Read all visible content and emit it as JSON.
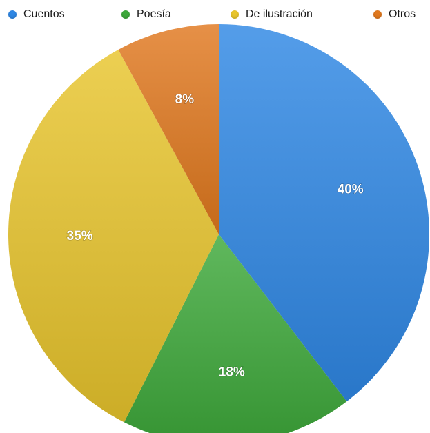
{
  "chart_data": {
    "type": "pie",
    "title": "",
    "legend_position": "top",
    "slices": [
      {
        "label": "Cuentos",
        "value": 40,
        "display": "40%",
        "color": "#2f87e4"
      },
      {
        "label": "Poesía",
        "value": 18,
        "display": "18%",
        "color": "#3da83a"
      },
      {
        "label": "De ilustración",
        "value": 35,
        "display": "35%",
        "color": "#e8c52c"
      },
      {
        "label": "Otros",
        "value": 8,
        "display": "8%",
        "color": "#e0781e"
      }
    ]
  }
}
